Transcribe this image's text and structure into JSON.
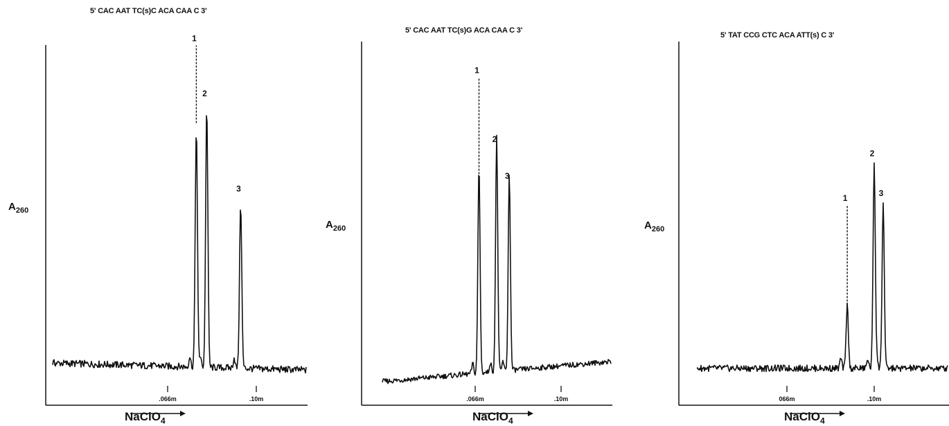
{
  "chart_data": [
    {
      "type": "line",
      "title": "5' CAC AAT TC(s)C ACA CAA C 3'",
      "ylabel": "A",
      "ylabel_sub": "260",
      "xlabel": "NaClO",
      "xlabel_sub": "4",
      "ticks": [
        {
          "x": 0.066,
          "label": ".066m"
        },
        {
          "x": 0.1,
          "label": ".10m"
        }
      ],
      "xlim": [
        0.02,
        0.12
      ],
      "ylim": [
        0,
        1.05
      ],
      "peaks": [
        {
          "label": "1",
          "x": 0.077,
          "y": 0.78,
          "dashed_to": 1.0
        },
        {
          "label": "2",
          "x": 0.081,
          "y": 0.84
        },
        {
          "label": "3",
          "x": 0.094,
          "y": 0.57
        }
      ],
      "baseline": {
        "start": 0.1,
        "end": 0.08,
        "noise": 0.01
      }
    },
    {
      "type": "line",
      "title": "5' CAC AAT TC(s)G ACA CAA C 3'",
      "ylabel": "A",
      "ylabel_sub": "260",
      "xlabel": "NaClO",
      "xlabel_sub": "4",
      "ticks": [
        {
          "x": 0.066,
          "label": ".066m"
        },
        {
          "x": 0.1,
          "label": ".10m"
        }
      ],
      "xlim": [
        0.02,
        0.12
      ],
      "ylim": [
        0,
        1.05
      ],
      "peaks": [
        {
          "label": "1",
          "x": 0.0675,
          "y": 0.67,
          "dashed_to": 0.96
        },
        {
          "label": "2",
          "x": 0.0745,
          "y": 0.75
        },
        {
          "label": "3",
          "x": 0.0795,
          "y": 0.64
        }
      ],
      "baseline": {
        "start": 0.05,
        "end": 0.11,
        "noise": 0.008
      }
    },
    {
      "type": "line",
      "title": "5' TAT CCG CTC ACA ATT(s) C 3'",
      "ylabel": "A",
      "ylabel_sub": "260",
      "xlabel": "NaClO",
      "xlabel_sub": "4",
      "ticks": [
        {
          "x": 0.066,
          "label": "066m"
        },
        {
          "x": 0.1,
          "label": ".10m"
        }
      ],
      "xlim": [
        0.02,
        0.12
      ],
      "ylim": [
        0,
        1.05
      ],
      "peaks": [
        {
          "label": "1",
          "x": 0.0895,
          "y": 0.28,
          "dashed_to": 0.58
        },
        {
          "label": "2",
          "x": 0.1,
          "y": 0.71
        },
        {
          "label": "3",
          "x": 0.1035,
          "y": 0.59
        }
      ],
      "baseline": {
        "start": 0.09,
        "end": 0.09,
        "noise": 0.01
      }
    }
  ]
}
